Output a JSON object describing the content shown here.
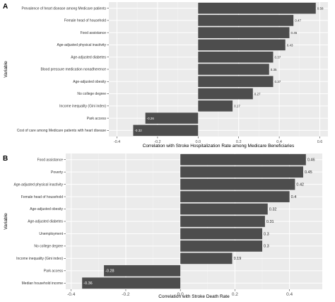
{
  "chart_data": [
    {
      "type": "bar",
      "orientation": "horizontal",
      "panel_label": "A",
      "xlabel": "Correlation with Stroke Hospitalization Rate among Medicare Beneficiaries",
      "ylabel": "Variable",
      "xlim": [
        -0.44,
        0.64
      ],
      "xticks": [
        "-0.4",
        "-0.2",
        "0.0",
        "0.2",
        "0.4",
        "0.6"
      ],
      "xtick_values": [
        -0.4,
        -0.2,
        0.0,
        0.2,
        0.4,
        0.6
      ],
      "categories": [
        "Prevalence of heart disease among Medicare patients",
        "Female head of household",
        "Food assistance",
        "Age-adjusted physical inactivity",
        "Age-adjusted diabetes",
        "Blood pressure medication nonadherence",
        "Age-adjusted obesity",
        "No college degree",
        "Income inequality (Gini index)",
        "Park access",
        "Cost of care among Medicare patients with heart disease"
      ],
      "values": [
        0.58,
        0.47,
        0.45,
        0.43,
        0.37,
        0.35,
        0.37,
        0.27,
        0.17,
        -0.26,
        -0.32
      ],
      "value_labels": [
        "0.58",
        "0.47",
        "0.45",
        "0.43",
        "0.37",
        "0.35",
        "0.37",
        "0.27",
        "0.17",
        "-0.26",
        "-0.32"
      ],
      "grid": true,
      "background": "#ebebeb",
      "bar_color": "#4d4d4d"
    },
    {
      "type": "bar",
      "orientation": "horizontal",
      "panel_label": "B",
      "xlabel": "Correlation with Stroke Death Rate",
      "ylabel": "Variable",
      "xlim": [
        -0.42,
        0.52
      ],
      "xticks": [
        "-0.4",
        "-0.2",
        "0.0",
        "0.2",
        "0.4"
      ],
      "xtick_values": [
        -0.4,
        -0.2,
        0.0,
        0.2,
        0.4
      ],
      "categories": [
        "Food assistance",
        "Poverty",
        "Age-adjusted physical inactivity",
        "Female head of household",
        "Age-adjusted obesity",
        "Age-adjusted diabetes",
        "Unemployment",
        "No college degree",
        "Income inequality (Gini index)",
        "Park access",
        "Median household income"
      ],
      "values": [
        0.46,
        0.45,
        0.42,
        0.4,
        0.32,
        0.31,
        0.3,
        0.3,
        0.19,
        -0.28,
        -0.36
      ],
      "value_labels": [
        "0.46",
        "0.45",
        "0.42",
        "0.4",
        "0.32",
        "0.31",
        "0.3",
        "0.3",
        "0.19",
        "-0.28",
        "-0.36"
      ],
      "grid": true,
      "background": "#ebebeb",
      "bar_color": "#4d4d4d"
    }
  ]
}
